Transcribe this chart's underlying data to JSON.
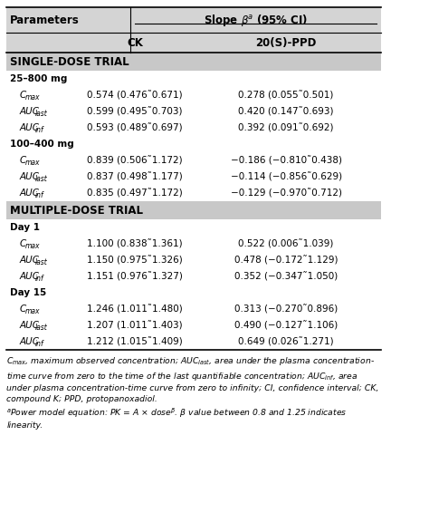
{
  "title_col1": "Parameters",
  "title_col2": "Slope βᵃ (95% CI)",
  "sub_col2": "CK",
  "sub_col3": "20(S)-PPD",
  "section1_header": "SINGLE-DOSE TRIAL",
  "section1_sub1": "25–800 mg",
  "section1_sub2": "100–400 mg",
  "section2_header": "MULTIPLE-DOSE TRIAL",
  "section2_sub1": "Day 1",
  "section2_sub2": "Day 15",
  "rows": [
    {
      "param": "C_max",
      "ck": "0.574 (0.476˜0.671)",
      "ppd": "0.278 (0.055˜0.501)",
      "group": "25-800"
    },
    {
      "param": "AUC_last",
      "ck": "0.599 (0.495˜0.703)",
      "ppd": "0.420 (0.147˜0.693)",
      "group": "25-800"
    },
    {
      "param": "AUC_inf",
      "ck": "0.593 (0.489˜0.697)",
      "ppd": "0.392 (0.091˜0.692)",
      "group": "25-800"
    },
    {
      "param": "C_max",
      "ck": "0.839 (0.506˜1.172)",
      "ppd": "−0.186 (−0.810˜0.438)",
      "group": "100-400"
    },
    {
      "param": "AUC_last",
      "ck": "0.837 (0.498˜1.177)",
      "ppd": "−0.114 (−0.856˜0.629)",
      "group": "100-400"
    },
    {
      "param": "AUC_inf",
      "ck": "0.835 (0.497˜1.172)",
      "ppd": "−0.129 (−0.970˜0.712)",
      "group": "100-400"
    },
    {
      "param": "C_max",
      "ck": "1.100 (0.838˜1.361)",
      "ppd": "0.522 (0.006˜1.039)",
      "group": "day1"
    },
    {
      "param": "AUC_last",
      "ck": "1.150 (0.975˜1.326)",
      "ppd": "0.478 (−0.172˜1.129)",
      "group": "day1"
    },
    {
      "param": "AUC_inf",
      "ck": "1.151 (0.976˜1.327)",
      "ppd": "0.352 (−0.347˜1.050)",
      "group": "day1"
    },
    {
      "param": "C_max",
      "ck": "1.246 (1.011˜1.480)",
      "ppd": "0.313 (−0.270˜0.896)",
      "group": "day15"
    },
    {
      "param": "AUC_last",
      "ck": "1.207 (1.011˜1.403)",
      "ppd": "0.490 (−0.127˜1.106)",
      "group": "day15"
    },
    {
      "param": "AUC_inf",
      "ck": "1.212 (1.015˜1.409)",
      "ppd": "0.649 (0.026˜1.271)",
      "group": "day15"
    }
  ],
  "footer_italic": "Cₘₐₓ, maximum observed concentration; AUCₗₐₛₜ, area under the plasma concentration-time curve from zero to the time of the last quantifiable concentration; AUCᵢₙₙ, area under plasma concentration-time curve from zero to infinity; CI, confidence interval; CK, compound K; PPD, protopanoxadiol.",
  "footer_note": "ᵃPower model equation: PK = A × doseᵞ. β value between 0.8 and 1.25 indicates linearity.",
  "header_bg": "#d4d4d4",
  "section_bg": "#c8c8c8",
  "white_bg": "#ffffff",
  "border_color": "#000000"
}
